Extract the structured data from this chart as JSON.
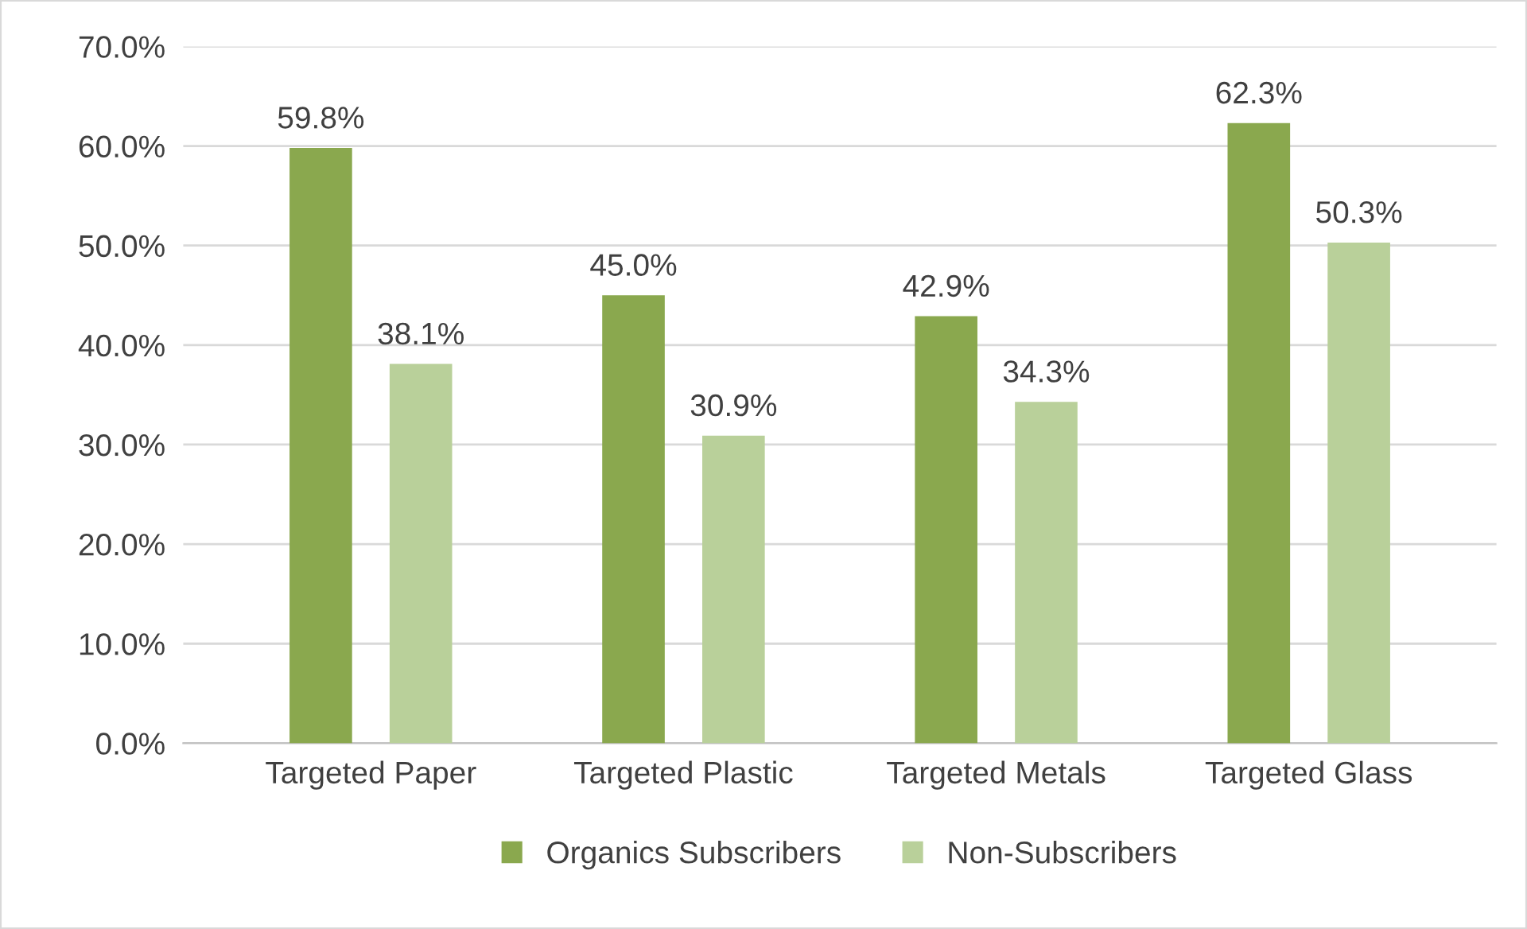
{
  "chart_data": {
    "type": "bar",
    "categories": [
      "Targeted Paper",
      "Targeted Plastic",
      "Targeted Metals",
      "Targeted Glass"
    ],
    "series": [
      {
        "name": "Organics Subscribers",
        "color": "#8aa84e",
        "values": [
          59.8,
          45.0,
          42.9,
          62.3
        ],
        "value_labels": [
          "59.8%",
          "45.0%",
          "42.9%",
          "62.3%"
        ]
      },
      {
        "name": "Non-Subscribers",
        "color": "#b9d09a",
        "values": [
          38.1,
          30.9,
          34.3,
          50.3
        ],
        "value_labels": [
          "38.1%",
          "30.9%",
          "34.3%",
          "50.3%"
        ]
      }
    ],
    "ylim": [
      0,
      70
    ],
    "yticks": [
      {
        "value": 0,
        "label": "0.0%"
      },
      {
        "value": 10,
        "label": "10.0%"
      },
      {
        "value": 20,
        "label": "20.0%"
      },
      {
        "value": 30,
        "label": "30.0%"
      },
      {
        "value": 40,
        "label": "40.0%"
      },
      {
        "value": 50,
        "label": "50.0%"
      },
      {
        "value": 60,
        "label": "60.0%"
      },
      {
        "value": 70,
        "label": "70.0%"
      }
    ],
    "grid": "y",
    "legend": "bottom"
  }
}
